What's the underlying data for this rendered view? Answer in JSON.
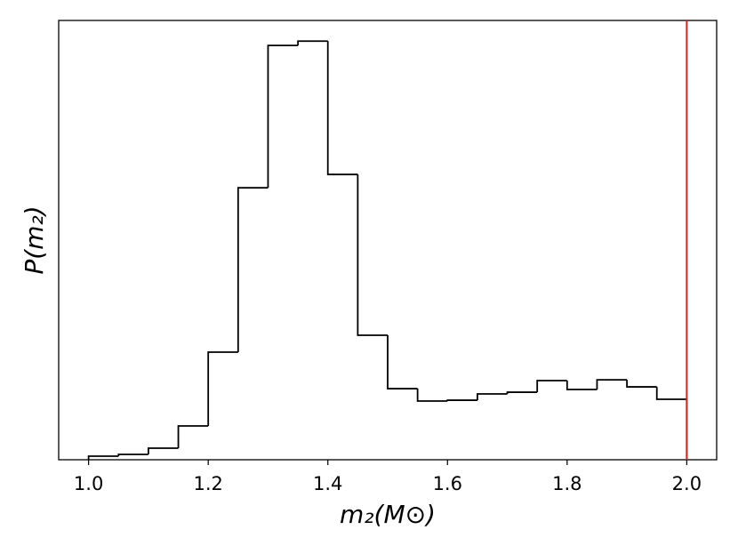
{
  "chart_data": {
    "type": "histogram",
    "x_label": "m₂(M⊙)",
    "y_label": "P(m₂)",
    "bins": [
      1.0,
      1.05,
      1.1,
      1.15,
      1.2,
      1.25,
      1.3,
      1.35,
      1.4,
      1.45,
      1.5,
      1.55,
      1.6,
      1.65,
      1.7,
      1.75,
      1.8,
      1.85,
      1.9,
      1.95,
      2.0
    ],
    "values": [
      0.03,
      0.045,
      0.098,
      0.286,
      0.911,
      2.303,
      3.508,
      3.545,
      2.416,
      1.054,
      0.602,
      0.497,
      0.504,
      0.557,
      0.572,
      0.67,
      0.595,
      0.677,
      0.617,
      0.512
    ],
    "color": "#000000",
    "vline": {
      "value": 2.0,
      "color": "#d62728"
    },
    "xlim": [
      0.95,
      2.05
    ],
    "ylim": [
      0,
      3.72
    ],
    "xticks": [
      {
        "value": 1.0,
        "label": "1.0"
      },
      {
        "value": 1.2,
        "label": "1.2"
      },
      {
        "value": 1.4,
        "label": "1.4"
      },
      {
        "value": 1.6,
        "label": "1.6"
      },
      {
        "value": 1.8,
        "label": "1.8"
      },
      {
        "value": 2.0,
        "label": "2.0"
      }
    ]
  }
}
